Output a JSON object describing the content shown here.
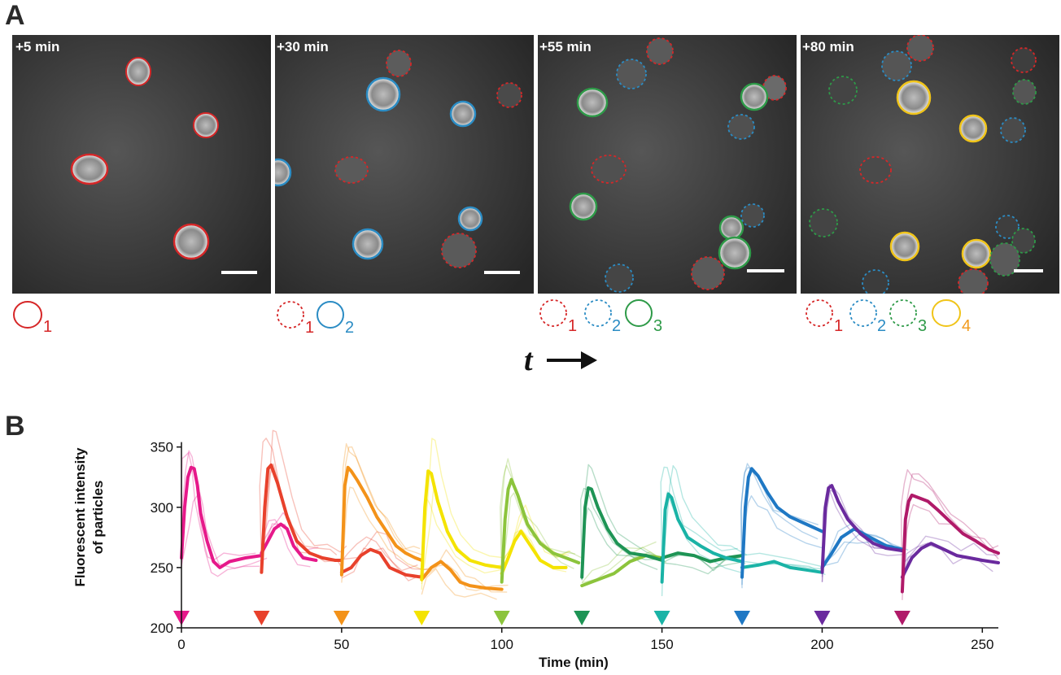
{
  "panel_a": {
    "label": "A",
    "timepoints": [
      "+5 min",
      "+30 min",
      "+55 min",
      "+80 min"
    ],
    "legend_numbers": [
      [
        "1"
      ],
      [
        "1",
        "2"
      ],
      [
        "1",
        "2",
        "3"
      ],
      [
        "1",
        "2",
        "3",
        "4"
      ]
    ],
    "time_arrow_label": "t",
    "generation_colors": [
      "#d62728",
      "#2b8cc4",
      "#2e9a48",
      "#f0c419"
    ],
    "legend_number_colors": [
      "#d62728",
      "#2b8cc4",
      "#2e9a48",
      "#f29b1d"
    ]
  },
  "panel_b": {
    "label": "B"
  },
  "chart_data": {
    "type": "line",
    "xlabel": "Time (min)",
    "ylabel": "Fluorescent intensity of particles",
    "xlim": [
      0,
      255
    ],
    "ylim": [
      200,
      370
    ],
    "xticks": [
      0,
      50,
      100,
      150,
      200,
      250
    ],
    "yticks": [
      200,
      250,
      300,
      350
    ],
    "marker_times": [
      0,
      25,
      50,
      75,
      100,
      125,
      150,
      175,
      200,
      225
    ],
    "series": [
      {
        "color": "#e6198a",
        "x": [
          0,
          1,
          2,
          3,
          4,
          5,
          6,
          8,
          10,
          12,
          15,
          20,
          25
        ],
        "y": [
          258,
          300,
          325,
          333,
          332,
          318,
          295,
          272,
          255,
          250,
          255,
          258,
          260
        ]
      },
      {
        "color": "#e6198a",
        "x": [
          25,
          27,
          29,
          31,
          33,
          35,
          38,
          42
        ],
        "y": [
          262,
          272,
          282,
          286,
          282,
          268,
          258,
          256
        ]
      },
      {
        "color": "#e8412c",
        "x": [
          25,
          26,
          27,
          28,
          30,
          33,
          36,
          40,
          44,
          48,
          50
        ],
        "y": [
          246,
          300,
          332,
          335,
          320,
          292,
          272,
          262,
          258,
          256,
          256
        ]
      },
      {
        "color": "#e8412c",
        "x": [
          50,
          53,
          56,
          59,
          62,
          65,
          70,
          75
        ],
        "y": [
          246,
          250,
          260,
          265,
          262,
          250,
          244,
          242
        ]
      },
      {
        "color": "#f39219",
        "x": [
          50,
          51,
          52,
          53,
          55,
          58,
          61,
          64,
          67,
          70,
          73,
          75
        ],
        "y": [
          244,
          318,
          333,
          330,
          322,
          308,
          292,
          280,
          268,
          262,
          258,
          256
        ]
      },
      {
        "color": "#f39219",
        "x": [
          75,
          78,
          81,
          84,
          87,
          90,
          95,
          100
        ],
        "y": [
          240,
          250,
          255,
          248,
          238,
          235,
          233,
          232
        ]
      },
      {
        "color": "#f4e300",
        "x": [
          75,
          76,
          77,
          78,
          80,
          83,
          86,
          90,
          95,
          100
        ],
        "y": [
          240,
          300,
          330,
          328,
          305,
          280,
          265,
          256,
          252,
          250
        ]
      },
      {
        "color": "#f4e300",
        "x": [
          100,
          102,
          104,
          106,
          109,
          112,
          116,
          120
        ],
        "y": [
          245,
          258,
          272,
          280,
          268,
          256,
          250,
          250
        ]
      },
      {
        "color": "#8cc43c",
        "x": [
          100,
          101,
          102,
          103,
          105,
          108,
          112,
          116,
          120,
          124
        ],
        "y": [
          238,
          290,
          315,
          323,
          310,
          286,
          270,
          262,
          258,
          254
        ]
      },
      {
        "color": "#8cc43c",
        "x": [
          125,
          130,
          135,
          140,
          145,
          150
        ],
        "y": [
          235,
          240,
          245,
          255,
          260,
          258
        ]
      },
      {
        "color": "#1e9455",
        "x": [
          125,
          126,
          127,
          128,
          130,
          133,
          136,
          140,
          145,
          150
        ],
        "y": [
          242,
          300,
          316,
          315,
          300,
          282,
          270,
          262,
          260,
          256
        ]
      },
      {
        "color": "#1e9455",
        "x": [
          150,
          155,
          160,
          165,
          170,
          175
        ],
        "y": [
          258,
          262,
          260,
          255,
          258,
          260
        ]
      },
      {
        "color": "#1ab3a6",
        "x": [
          150,
          151,
          152,
          153,
          155,
          158,
          162,
          166,
          170,
          175
        ],
        "y": [
          238,
          298,
          311,
          308,
          290,
          275,
          268,
          262,
          258,
          255
        ]
      },
      {
        "color": "#1ab3a6",
        "x": [
          175,
          180,
          185,
          190,
          195,
          200
        ],
        "y": [
          250,
          252,
          255,
          250,
          248,
          246
        ]
      },
      {
        "color": "#1f78c4",
        "x": [
          175,
          176,
          177,
          178,
          180,
          183,
          186,
          190,
          195,
          200
        ],
        "y": [
          242,
          300,
          325,
          332,
          326,
          312,
          300,
          292,
          286,
          280
        ]
      },
      {
        "color": "#1f78c4",
        "x": [
          200,
          203,
          206,
          210,
          215,
          220,
          225
        ],
        "y": [
          250,
          262,
          275,
          282,
          275,
          268,
          265
        ]
      },
      {
        "color": "#6a2a9e",
        "x": [
          200,
          201,
          202,
          203,
          205,
          208,
          212,
          216,
          220,
          225
        ],
        "y": [
          246,
          300,
          316,
          318,
          305,
          290,
          278,
          270,
          266,
          264
        ]
      },
      {
        "color": "#6a2a9e",
        "x": [
          225,
          228,
          231,
          234,
          238,
          242,
          246,
          250,
          255
        ],
        "y": [
          242,
          258,
          266,
          270,
          265,
          260,
          258,
          256,
          254
        ]
      },
      {
        "color": "#b01a69",
        "x": [
          225,
          226,
          227,
          228,
          230,
          233,
          236,
          240,
          244,
          248,
          252,
          255
        ],
        "y": [
          230,
          290,
          305,
          310,
          308,
          305,
          298,
          288,
          278,
          272,
          265,
          262
        ]
      }
    ]
  }
}
